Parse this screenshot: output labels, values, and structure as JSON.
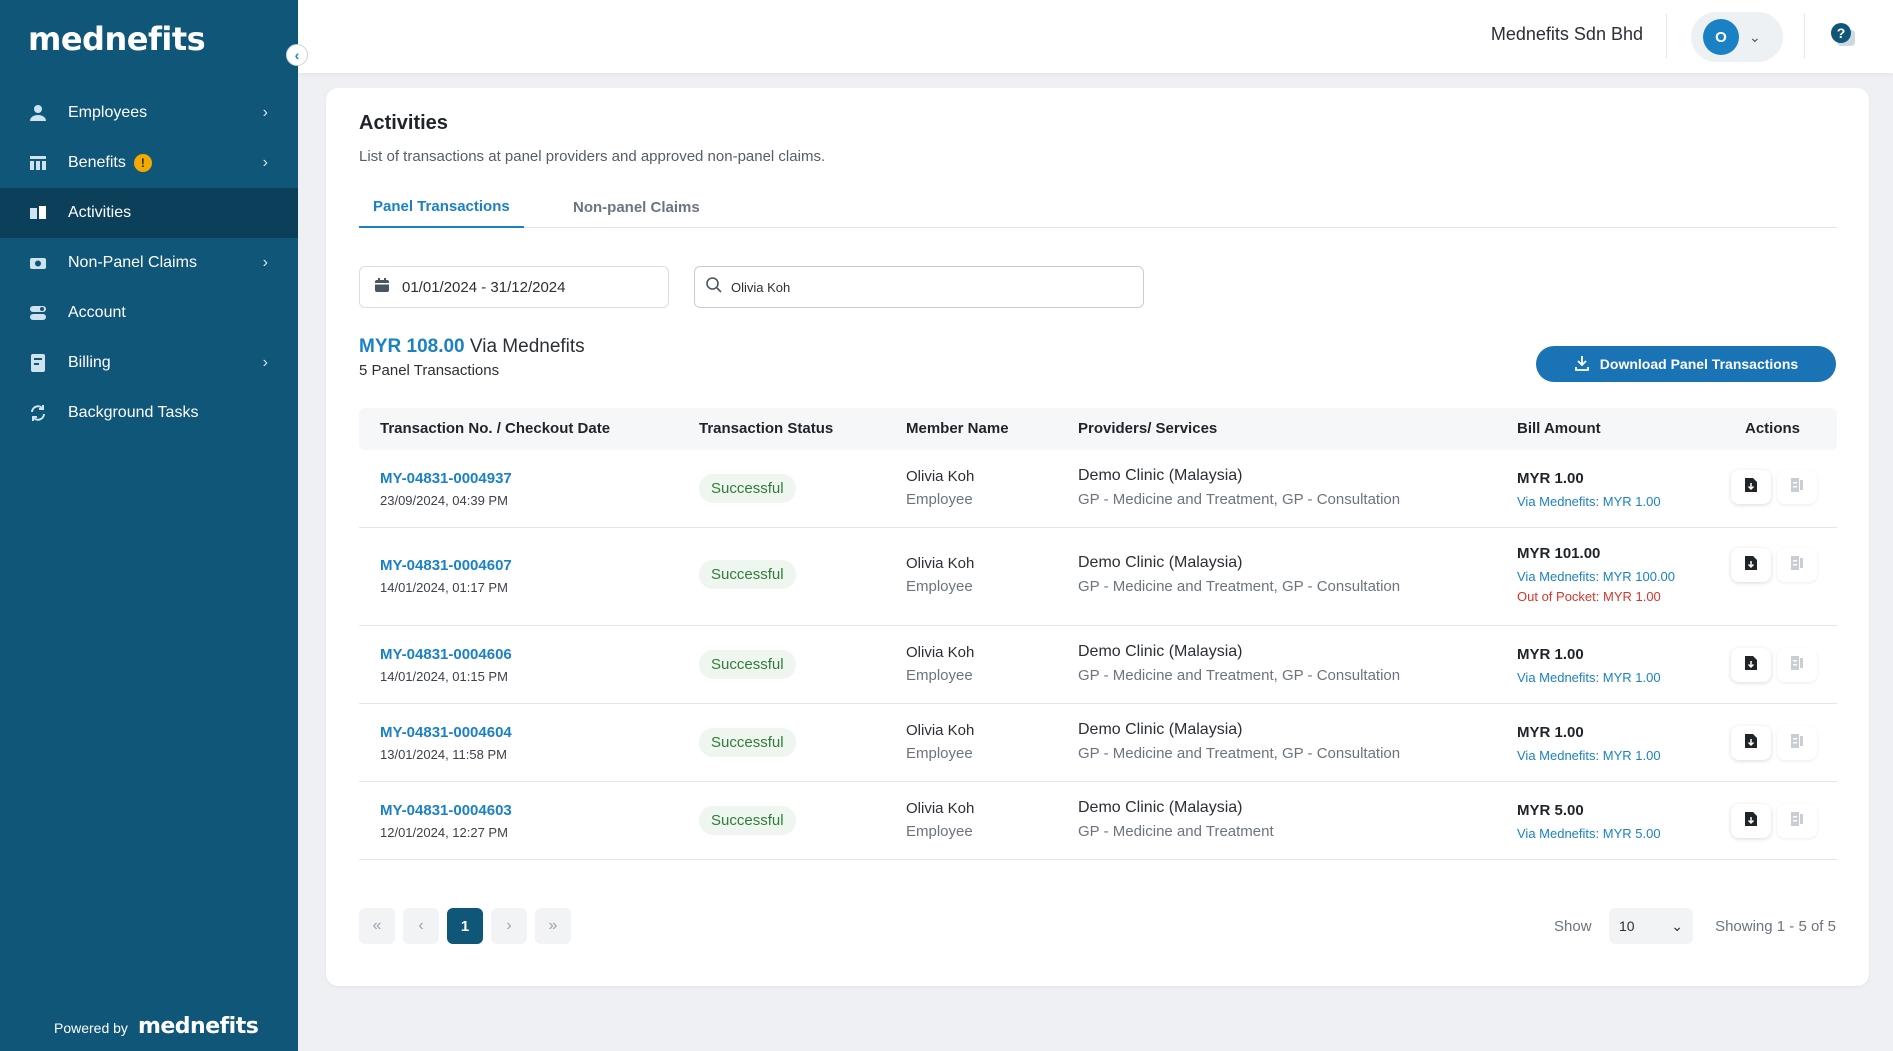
{
  "sidebar": {
    "logo": "mednefits",
    "collapse_icon": "chevron-left-icon",
    "items": [
      {
        "label": "Employees",
        "icon": "person-icon",
        "has_chevron": true
      },
      {
        "label": "Benefits",
        "icon": "benefits-icon",
        "has_chevron": true,
        "badge": "!"
      },
      {
        "label": "Activities",
        "icon": "activities-icon",
        "active": true
      },
      {
        "label": "Non-Panel Claims",
        "icon": "camera-icon",
        "has_chevron": true
      },
      {
        "label": "Account",
        "icon": "account-icon"
      },
      {
        "label": "Billing",
        "icon": "billing-icon",
        "has_chevron": true
      },
      {
        "label": "Background Tasks",
        "icon": "refresh-icon"
      }
    ],
    "powered_by": "Powered by",
    "powered_logo": "mednefits"
  },
  "topbar": {
    "company": "Mednefits Sdn Bhd",
    "avatar_initial": "O"
  },
  "page": {
    "title": "Activities",
    "subtitle": "List of transactions at panel providers and approved non-panel claims.",
    "tabs": [
      {
        "label": "Panel Transactions",
        "active": true
      },
      {
        "label": "Non-panel Claims",
        "active": false
      }
    ],
    "date_range": "01/01/2024 - 31/12/2024",
    "search_value": "Olivia Koh",
    "summary_amount": "MYR 108.00",
    "summary_via": "Via Mednefits",
    "summary_count": "5 Panel Transactions",
    "download_label": "Download Panel Transactions"
  },
  "table": {
    "headers": {
      "txn": "Transaction No. / Checkout Date",
      "status": "Transaction Status",
      "member": "Member Name",
      "provider": "Providers/ Services",
      "bill": "Bill Amount",
      "actions": "Actions"
    },
    "rows": [
      {
        "txn_no": "MY-04831-0004937",
        "date": "23/09/2024, 04:39 PM",
        "status": "Successful",
        "member": "Olivia Koh",
        "role": "Employee",
        "provider": "Demo Clinic (Malaysia)",
        "service": "GP - Medicine and Treatment, GP - Consultation",
        "bill": "MYR 1.00",
        "via": "Via Mednefits: MYR 1.00",
        "oop": ""
      },
      {
        "txn_no": "MY-04831-0004607",
        "date": "14/01/2024, 01:17 PM",
        "status": "Successful",
        "member": "Olivia Koh",
        "role": "Employee",
        "provider": "Demo Clinic (Malaysia)",
        "service": "GP - Medicine and Treatment, GP - Consultation",
        "bill": "MYR 101.00",
        "via": "Via Mednefits: MYR 100.00",
        "oop": "Out of Pocket: MYR 1.00"
      },
      {
        "txn_no": "MY-04831-0004606",
        "date": "14/01/2024, 01:15 PM",
        "status": "Successful",
        "member": "Olivia Koh",
        "role": "Employee",
        "provider": "Demo Clinic (Malaysia)",
        "service": "GP - Medicine and Treatment, GP - Consultation",
        "bill": "MYR 1.00",
        "via": "Via Mednefits: MYR 1.00",
        "oop": ""
      },
      {
        "txn_no": "MY-04831-0004604",
        "date": "13/01/2024, 11:58 PM",
        "status": "Successful",
        "member": "Olivia Koh",
        "role": "Employee",
        "provider": "Demo Clinic (Malaysia)",
        "service": "GP - Medicine and Treatment, GP - Consultation",
        "bill": "MYR 1.00",
        "via": "Via Mednefits: MYR 1.00",
        "oop": ""
      },
      {
        "txn_no": "MY-04831-0004603",
        "date": "12/01/2024, 12:27 PM",
        "status": "Successful",
        "member": "Olivia Koh",
        "role": "Employee",
        "provider": "Demo Clinic (Malaysia)",
        "service": "GP - Medicine and Treatment",
        "bill": "MYR 5.00",
        "via": "Via Mednefits: MYR 5.00",
        "oop": ""
      }
    ]
  },
  "pagination": {
    "current_page": "1",
    "show_label": "Show",
    "page_size": "10",
    "showing": "Showing 1 - 5 of 5"
  },
  "colors": {
    "sidebar_bg": "#0f5679",
    "sidebar_active": "#0b3f5a",
    "accent": "#1a82c4",
    "success": "#2f7d3a",
    "danger": "#d9342b"
  }
}
